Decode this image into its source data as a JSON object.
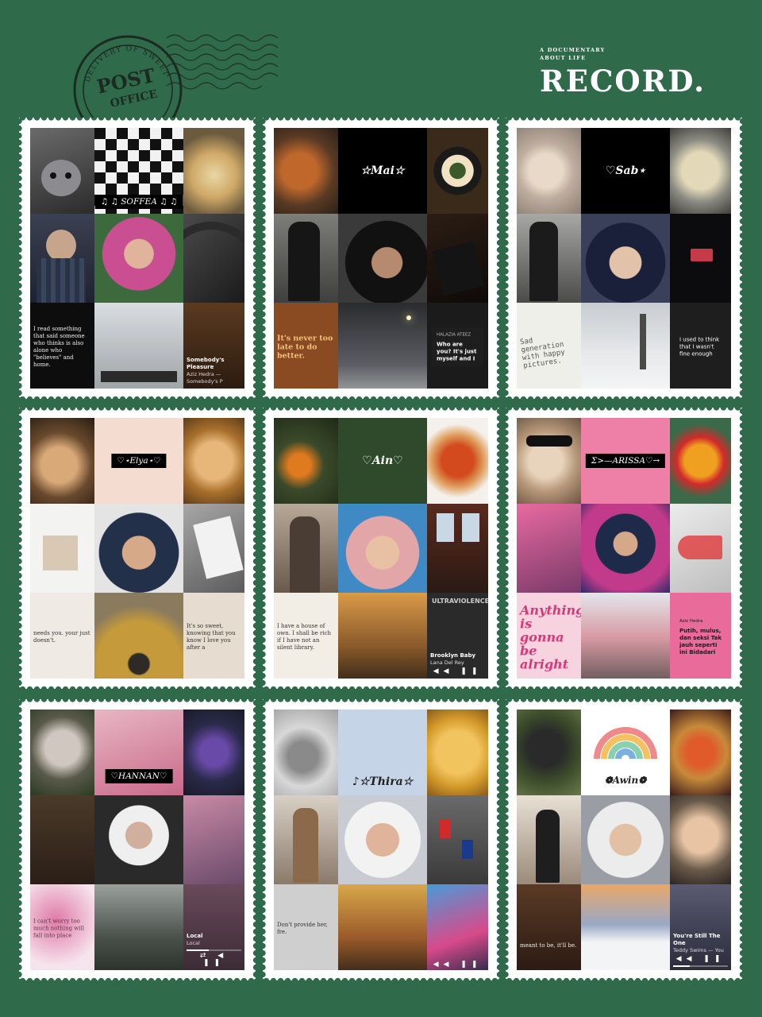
{
  "header": {
    "postmark_top": "DELIVERY OF SWEET",
    "postmark_main": "POST",
    "postmark_sub": "OFFICE",
    "tagline_1": "A DOCUMENTARY",
    "tagline_2": "ABOUT LIFE",
    "title": "RECORD."
  },
  "stamps": [
    {
      "name": "♫ ♫ SOFFEA ♫ ♫",
      "quote": "I read something that said someone who thinks is also alone who \"believes\" and home.",
      "song_title": "Somebody's Pleasure",
      "song_artist": "Aziz Hedra — Somebody's P"
    },
    {
      "name": "☆Mai☆",
      "quote": "It's never too late to do better.",
      "share_lyric": "Who are you? It's just myself and I",
      "share_artist": "HALAZIA  ATEEZ"
    },
    {
      "name": "♡Sab⋆",
      "handwriting": "Sad generation with happy pictures.",
      "share_lyric": "I used to think that I wasn't fine enough"
    },
    {
      "name": "♡⋆Elya⋆♡",
      "quote": "needs you. your just doesn't.",
      "quote2": "It's so sweet, knowing that you know I love you after a"
    },
    {
      "name": "♡Ain♡",
      "quote": "I have a house of own. I shall be rich if I have not an silent library.",
      "song_title": "Brooklyn Baby",
      "song_artist": "Lana Del Rey",
      "album": "ULTRAVIOLENCE"
    },
    {
      "name": "Σ>—ARISSA♡→",
      "quote": "Anything is gonna be alright",
      "share_lyric": "Putih, mulus, dan seksi Tak jauh seperti ini Bidadari",
      "share_artist": "Aziz Hedra"
    },
    {
      "name": "♡HANNAN♡",
      "quote": "I can't worry too much nothing will fall into place",
      "song_title": "Local",
      "song_artist": "Local"
    },
    {
      "name": "♪☆Thira☆",
      "quote": "Don't provide her, fre."
    },
    {
      "name": "❁Awin❁",
      "quote": "meant to be, it'll be.",
      "song_title": "You're Still The One",
      "song_artist": "Teddy Swims — You"
    }
  ]
}
